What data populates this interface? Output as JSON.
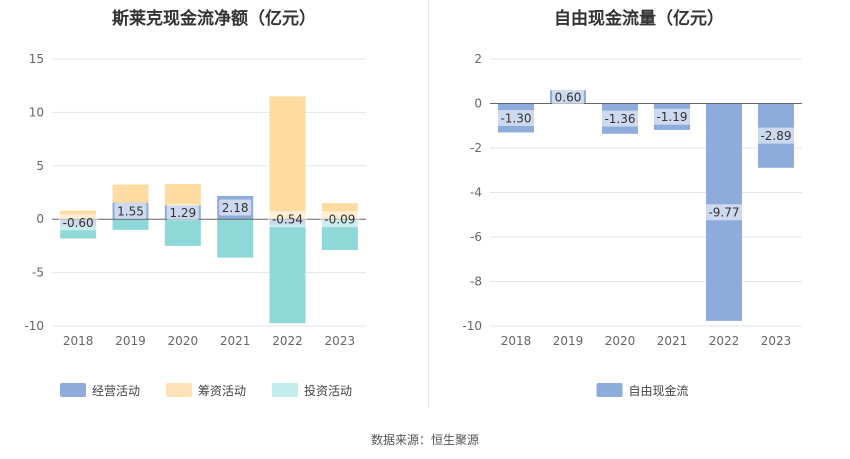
{
  "chart_data": [
    {
      "type": "bar",
      "title": "斯莱克现金流净额（亿元）",
      "categories": [
        "2018",
        "2019",
        "2020",
        "2021",
        "2022",
        "2023"
      ],
      "stacked": true,
      "ylim": [
        -10,
        15
      ],
      "yticks": [
        -10,
        -5,
        0,
        5,
        10,
        15
      ],
      "grid": true,
      "legend_position": "bottom",
      "series": [
        {
          "name": "经营活动",
          "color": "#8eacdb",
          "values": [
            -0.6,
            1.55,
            1.29,
            2.18,
            -0.54,
            -0.09
          ],
          "labels": [
            "-0.60",
            "1.55",
            "1.29",
            "2.18",
            "-0.54",
            "-0.09"
          ]
        },
        {
          "name": "筹资活动",
          "color": "#fedba0",
          "values": [
            0.8,
            1.7,
            2.0,
            0.0,
            11.5,
            1.5
          ]
        },
        {
          "name": "投资活动",
          "color": "#8ed8d8",
          "values": [
            -1.2,
            -1.0,
            -2.5,
            -3.6,
            -9.2,
            -2.8
          ]
        }
      ]
    },
    {
      "type": "bar",
      "title": "自由现金流量（亿元）",
      "categories": [
        "2018",
        "2019",
        "2020",
        "2021",
        "2022",
        "2023"
      ],
      "ylim": [
        -10,
        2
      ],
      "yticks": [
        -10,
        -8,
        -6,
        -4,
        -2,
        0,
        2
      ],
      "grid": true,
      "legend_position": "bottom",
      "series": [
        {
          "name": "自由现金流",
          "color": "#8eacdb",
          "values": [
            -1.3,
            0.6,
            -1.36,
            -1.19,
            -9.77,
            -2.89
          ],
          "labels": [
            "-1.30",
            "0.60",
            "-1.36",
            "-1.19",
            "-9.77",
            "-2.89"
          ]
        }
      ]
    }
  ],
  "legend_colors": {
    "经营活动": "#8eacdb",
    "筹资活动": "#fde2b8",
    "投资活动": "#c4ecec",
    "自由现金流": "#8eacdb"
  },
  "source": "数据来源：恒生聚源"
}
